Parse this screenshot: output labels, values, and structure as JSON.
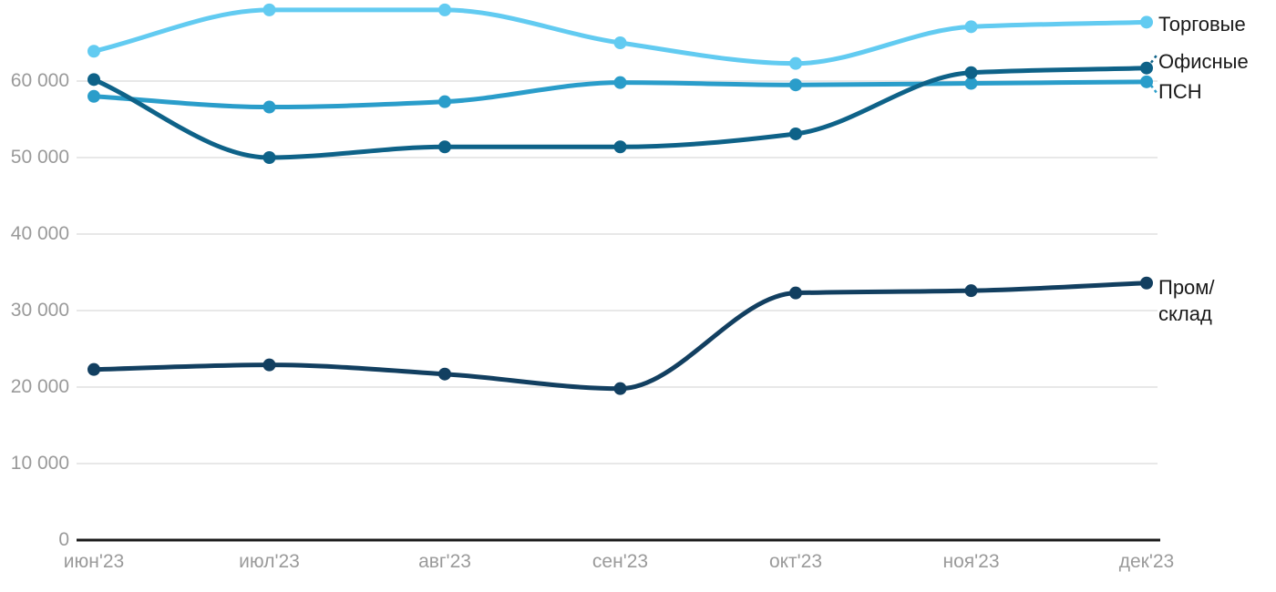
{
  "chart_data": {
    "type": "line",
    "title": "",
    "xlabel": "",
    "ylabel": "",
    "categories": [
      "июн'23",
      "июл'23",
      "авг'23",
      "сен'23",
      "окт'23",
      "ноя'23",
      "дек'23"
    ],
    "series": [
      {
        "name": "Торговые",
        "color": "#62CBF1",
        "values": [
          63900,
          69300,
          69300,
          65000,
          62300,
          67100,
          67700
        ]
      },
      {
        "name": "Офисные",
        "color": "#0E6288",
        "values": [
          60200,
          50000,
          51400,
          51400,
          53100,
          61100,
          61700
        ]
      },
      {
        "name": "ПСН",
        "color": "#2A9DCA",
        "values": [
          58000,
          56600,
          57300,
          59800,
          59500,
          59700,
          59900
        ]
      },
      {
        "name": "Пром/склад",
        "color": "#123F60",
        "values": [
          22300,
          22900,
          21700,
          19800,
          32300,
          32600,
          33600
        ]
      }
    ],
    "ylim": [
      0,
      70000
    ],
    "yticks": [
      0,
      10000,
      20000,
      30000,
      40000,
      50000,
      60000
    ],
    "ytick_labels": [
      "0",
      "10 000",
      "20 000",
      "30 000",
      "40 000",
      "50 000",
      "60 000"
    ],
    "grid": "horizontal",
    "legend_position": "right-end-labels",
    "marker": "circle",
    "smoothing": "monotone"
  },
  "colors": {
    "background": "#FFFFFF",
    "gridline": "#E8E8E8",
    "axis_line": "#1A1A1A",
    "tick_text": "#9A9A9A",
    "label_text": "#1A1A1A"
  }
}
